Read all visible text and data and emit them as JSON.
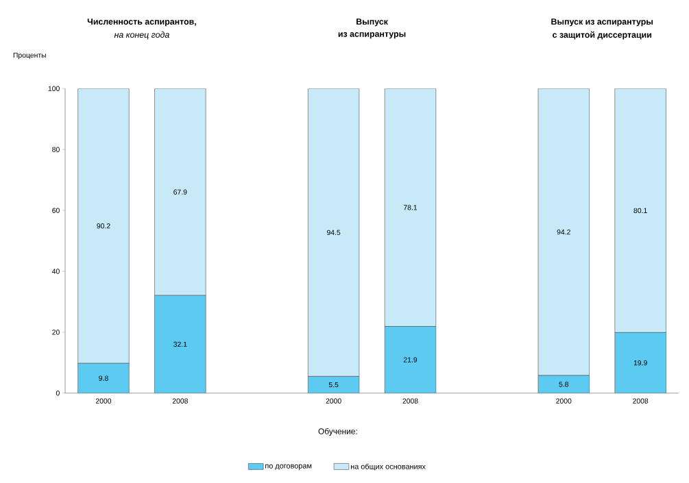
{
  "chart_data": {
    "type": "bar",
    "stacked": true,
    "categories": [
      "2000",
      "2008",
      null,
      "2000",
      "2008",
      null,
      "2000",
      "2008"
    ],
    "series": [
      {
        "name": "по договорам",
        "color": "#5ccaf1",
        "values": [
          9.8,
          32.1,
          null,
          5.5,
          21.9,
          null,
          5.8,
          19.9
        ]
      },
      {
        "name": "на общих основаниях",
        "color": "#c8eaf8",
        "values": [
          90.2,
          67.9,
          null,
          94.5,
          78.1,
          null,
          94.2,
          80.1
        ]
      }
    ],
    "ylim": [
      0,
      100
    ],
    "yticks": [
      0,
      20,
      40,
      60,
      80,
      100
    ],
    "ylabel": "Проценты",
    "legend_title": "Обучение:",
    "legend": "bottom",
    "data_labels": true,
    "annotations": [
      "Численность аспирантов,",
      "на конец года",
      "Выпуск",
      "из аспирантуры",
      "Выпуск из аспирантуры",
      "с защитой диссертации"
    ]
  }
}
